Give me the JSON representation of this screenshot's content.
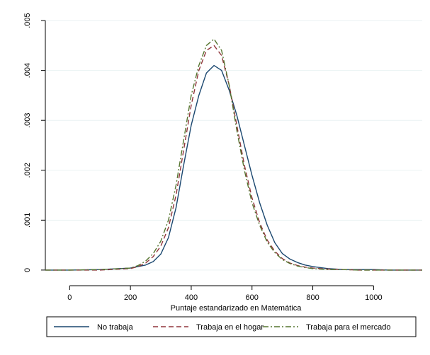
{
  "chart_data": {
    "type": "line",
    "xlabel": "Puntaje estandarizado en Matemática",
    "ylabel": "",
    "xlim": [
      -80,
      1160
    ],
    "ylim": [
      -0.0002,
      0.0051
    ],
    "x_ticks": [
      0,
      200,
      400,
      600,
      800,
      1000
    ],
    "y_ticks": [
      0,
      0.001,
      0.002,
      0.003,
      0.004,
      0.005
    ],
    "x_tick_labels": [
      "0",
      "200",
      "400",
      "600",
      "800",
      "1000"
    ],
    "y_tick_labels": [
      "0",
      ".001",
      ".002",
      ".003",
      ".004",
      ".005"
    ],
    "grid": "horizontal",
    "legend_position": "bottom",
    "series": [
      {
        "name": "No trabaja",
        "color": "#1a476f",
        "dash": "solid",
        "x": [
          -80,
          0,
          100,
          200,
          250,
          275,
          300,
          325,
          350,
          375,
          400,
          425,
          450,
          475,
          500,
          525,
          550,
          575,
          600,
          625,
          650,
          675,
          700,
          725,
          750,
          775,
          800,
          825,
          850,
          875,
          900,
          950,
          1000,
          1050,
          1100,
          1160
        ],
        "y": [
          0,
          0,
          1e-05,
          4e-05,
          0.0001,
          0.00017,
          0.00032,
          0.00065,
          0.00125,
          0.0021,
          0.0029,
          0.0035,
          0.00395,
          0.0041,
          0.004,
          0.0036,
          0.0031,
          0.0025,
          0.0019,
          0.00135,
          0.0009,
          0.00055,
          0.00033,
          0.00022,
          0.00015,
          0.0001,
          7e-05,
          5e-05,
          3e-05,
          2e-05,
          1e-05,
          1e-05,
          1e-05,
          0,
          0,
          0
        ]
      },
      {
        "name": "Trabaja en el hogar",
        "color": "#90353b",
        "dash": "dashed",
        "x": [
          -80,
          0,
          100,
          200,
          225,
          250,
          275,
          300,
          325,
          350,
          375,
          400,
          425,
          450,
          475,
          500,
          525,
          550,
          575,
          600,
          625,
          650,
          675,
          700,
          725,
          750,
          775,
          800,
          850,
          900,
          950,
          1000,
          1050,
          1100,
          1160
        ],
        "y": [
          0,
          0,
          0,
          3e-05,
          7e-05,
          0.00014,
          0.00027,
          0.00048,
          0.00085,
          0.0015,
          0.0024,
          0.0033,
          0.004,
          0.0044,
          0.0045,
          0.0043,
          0.0037,
          0.0029,
          0.0021,
          0.00145,
          0.00095,
          0.0006,
          0.00038,
          0.00023,
          0.00014,
          9e-05,
          6e-05,
          4e-05,
          2e-05,
          1e-05,
          0,
          0,
          0,
          0,
          0
        ]
      },
      {
        "name": "Trabaja para el mercado",
        "color": "#55752f",
        "dash": "dashdot",
        "x": [
          -80,
          0,
          100,
          200,
          225,
          250,
          275,
          300,
          325,
          350,
          375,
          400,
          425,
          450,
          475,
          500,
          525,
          550,
          575,
          600,
          625,
          650,
          675,
          700,
          725,
          750,
          775,
          800,
          850,
          900,
          950,
          1000,
          1050,
          1100,
          1160
        ],
        "y": [
          0,
          0,
          1e-05,
          4e-05,
          9e-05,
          0.00018,
          0.00033,
          0.00058,
          0.001,
          0.0017,
          0.0026,
          0.0035,
          0.0041,
          0.0045,
          0.00463,
          0.0044,
          0.0037,
          0.0028,
          0.002,
          0.00135,
          0.0009,
          0.00056,
          0.00035,
          0.00021,
          0.00013,
          8e-05,
          5e-05,
          3e-05,
          1e-05,
          1e-05,
          0,
          0,
          0,
          0,
          0
        ]
      }
    ]
  }
}
